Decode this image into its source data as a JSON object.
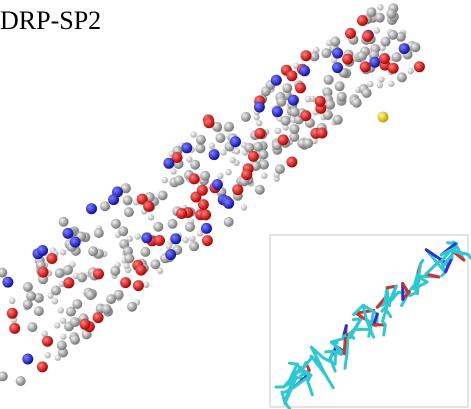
{
  "title": "DRP-SP2"
}
